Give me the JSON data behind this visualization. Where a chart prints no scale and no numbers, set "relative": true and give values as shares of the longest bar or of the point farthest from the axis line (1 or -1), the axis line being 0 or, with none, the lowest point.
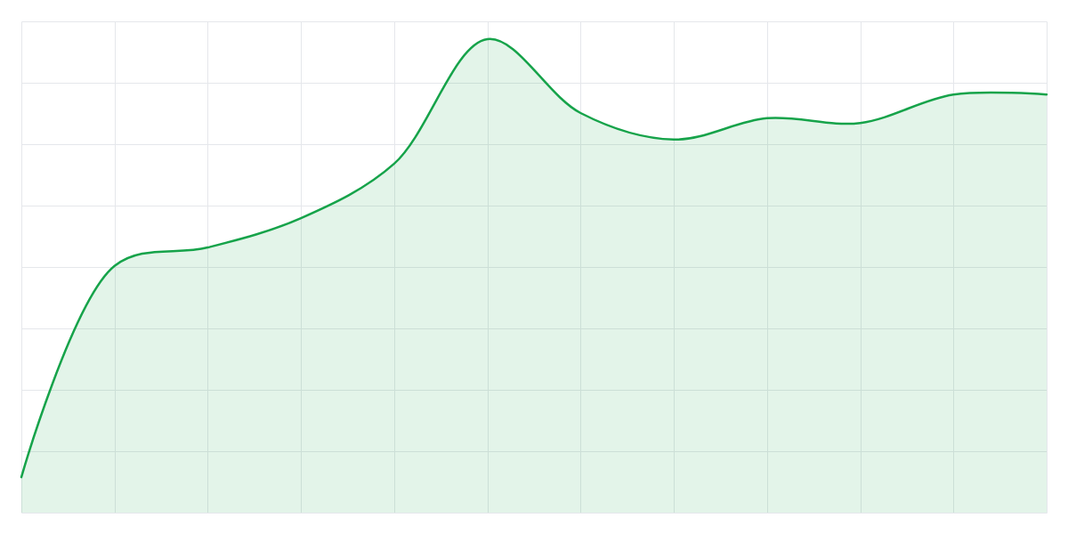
{
  "chart_data": {
    "type": "area",
    "relative": true,
    "grid": true,
    "categories": [
      null,
      null,
      null,
      null,
      null,
      null,
      null,
      null,
      null,
      null,
      null,
      null
    ],
    "series": [
      {
        "color": "#16a34a",
        "values": [
          0.075,
          0.521,
          0.56,
          0.622,
          0.737,
          1.0,
          0.844,
          0.788,
          0.833,
          0.823,
          0.883,
          0.883
        ]
      }
    ]
  }
}
